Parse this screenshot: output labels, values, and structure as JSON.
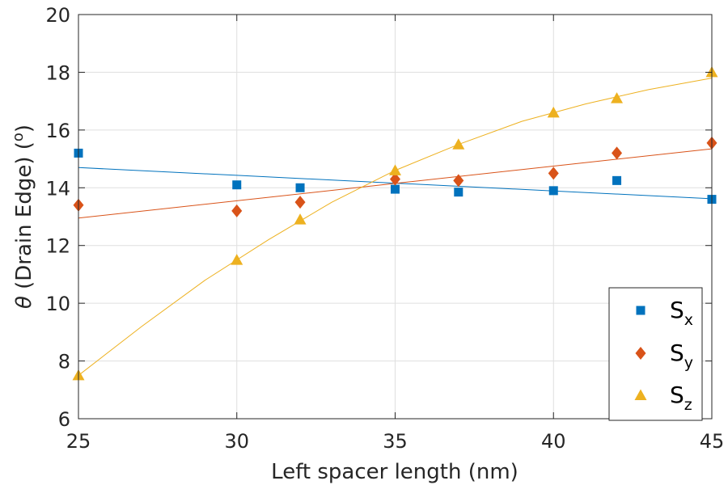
{
  "chart_data": {
    "type": "scatter",
    "xlabel": "Left spacer length (nm)",
    "ylabel_symbol": "θ",
    "ylabel_text": " (Drain Edge) (",
    "ylabel_sup": "o",
    "ylabel_close": ")",
    "xlim": [
      25,
      45
    ],
    "ylim": [
      6,
      20
    ],
    "xticks": [
      25,
      30,
      35,
      40,
      45
    ],
    "yticks": [
      6,
      8,
      10,
      12,
      14,
      16,
      18,
      20
    ],
    "grid": true,
    "legend_position": "bottom-right",
    "series": [
      {
        "name": "S",
        "subscript": "x",
        "marker": "square",
        "color": "#0072BD",
        "x": [
          25,
          30,
          32,
          35,
          37,
          40,
          42,
          45
        ],
        "y": [
          15.2,
          14.1,
          14.0,
          13.95,
          13.85,
          13.9,
          14.25,
          13.6
        ],
        "fit": {
          "x": [
            25,
            30,
            35,
            40,
            45
          ],
          "y": [
            14.7,
            14.43,
            14.16,
            13.89,
            13.62
          ]
        }
      },
      {
        "name": "S",
        "subscript": "y",
        "marker": "diamond",
        "color": "#D95319",
        "x": [
          25,
          30,
          32,
          35,
          37,
          40,
          42,
          45
        ],
        "y": [
          13.4,
          13.2,
          13.5,
          14.3,
          14.25,
          14.5,
          15.2,
          15.55
        ],
        "fit": {
          "x": [
            25,
            30,
            35,
            40,
            45
          ],
          "y": [
            12.95,
            13.55,
            14.15,
            14.75,
            15.35
          ]
        }
      },
      {
        "name": "S",
        "subscript": "z",
        "marker": "triangle",
        "color": "#EDB120",
        "x": [
          25,
          30,
          32,
          35,
          37,
          40,
          42,
          45
        ],
        "y": [
          7.5,
          11.5,
          12.9,
          14.6,
          15.5,
          16.6,
          17.1,
          18.0
        ],
        "fit": {
          "x": [
            25,
            27,
            29,
            31,
            33,
            35,
            37,
            39,
            41,
            43,
            45
          ],
          "y": [
            7.5,
            9.2,
            10.8,
            12.2,
            13.5,
            14.6,
            15.5,
            16.3,
            16.9,
            17.4,
            17.8
          ]
        }
      }
    ]
  }
}
